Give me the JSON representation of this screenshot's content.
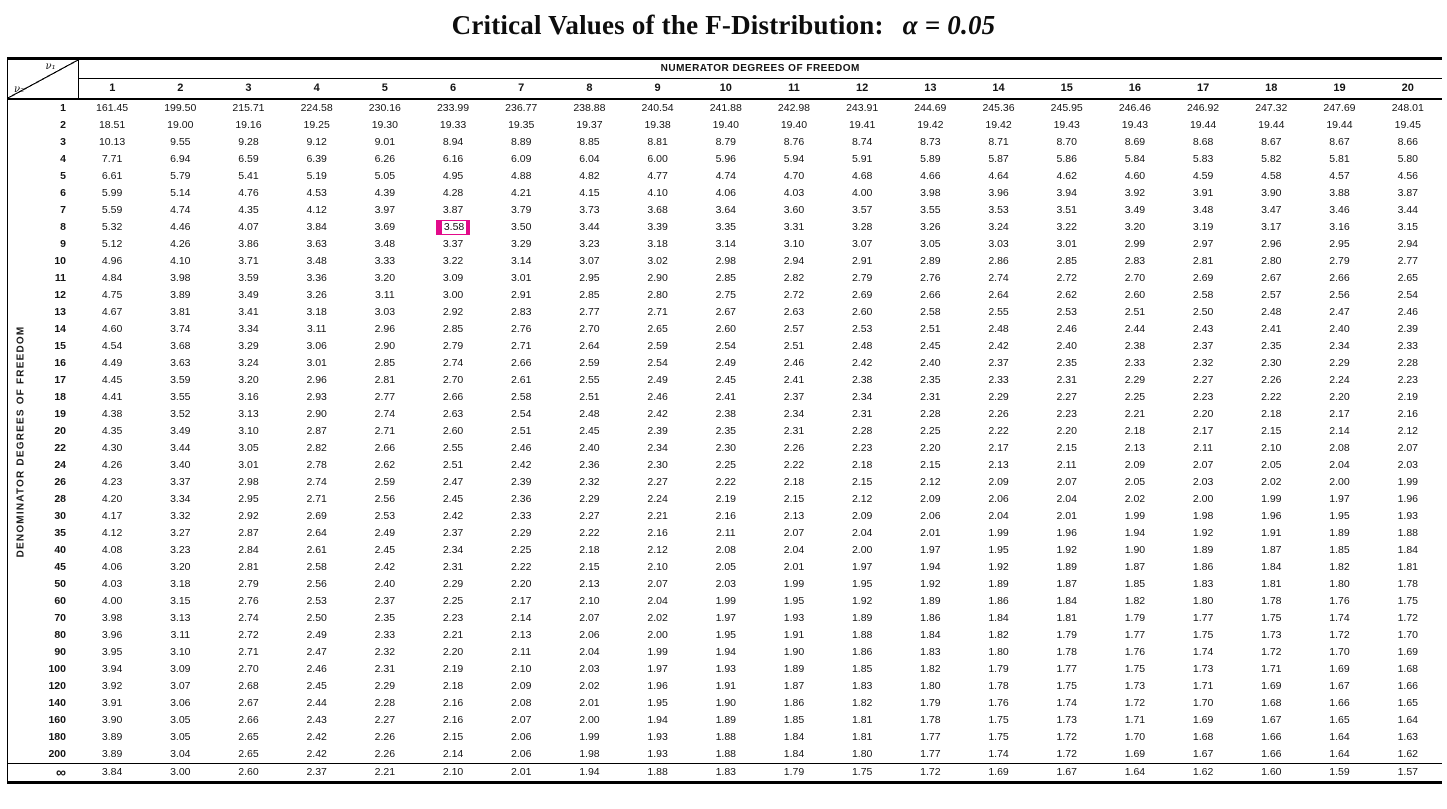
{
  "title": {
    "main": "Critical Values of the F-Distribution:",
    "alpha": "α = 0.05"
  },
  "table": {
    "corner": {
      "v1": "ν₁",
      "v2": "ν₂"
    },
    "numerator_header": "NUMERATOR DEGREES OF FREEDOM",
    "denominator_header": "DENOMINATOR DEGREES OF FREEDOM",
    "columns": [
      "1",
      "2",
      "3",
      "4",
      "5",
      "6",
      "7",
      "8",
      "9",
      "10",
      "11",
      "12",
      "13",
      "14",
      "15",
      "16",
      "17",
      "18",
      "19",
      "20"
    ],
    "highlight": {
      "row_label": "8",
      "column": "6",
      "value": "3.58",
      "color": "#e20a8a"
    },
    "rows": [
      {
        "label": "1",
        "values": [
          "161.45",
          "199.50",
          "215.71",
          "224.58",
          "230.16",
          "233.99",
          "236.77",
          "238.88",
          "240.54",
          "241.88",
          "242.98",
          "243.91",
          "244.69",
          "245.36",
          "245.95",
          "246.46",
          "246.92",
          "247.32",
          "247.69",
          "248.01"
        ]
      },
      {
        "label": "2",
        "values": [
          "18.51",
          "19.00",
          "19.16",
          "19.25",
          "19.30",
          "19.33",
          "19.35",
          "19.37",
          "19.38",
          "19.40",
          "19.40",
          "19.41",
          "19.42",
          "19.42",
          "19.43",
          "19.43",
          "19.44",
          "19.44",
          "19.44",
          "19.45"
        ]
      },
      {
        "label": "3",
        "values": [
          "10.13",
          "9.55",
          "9.28",
          "9.12",
          "9.01",
          "8.94",
          "8.89",
          "8.85",
          "8.81",
          "8.79",
          "8.76",
          "8.74",
          "8.73",
          "8.71",
          "8.70",
          "8.69",
          "8.68",
          "8.67",
          "8.67",
          "8.66"
        ]
      },
      {
        "label": "4",
        "values": [
          "7.71",
          "6.94",
          "6.59",
          "6.39",
          "6.26",
          "6.16",
          "6.09",
          "6.04",
          "6.00",
          "5.96",
          "5.94",
          "5.91",
          "5.89",
          "5.87",
          "5.86",
          "5.84",
          "5.83",
          "5.82",
          "5.81",
          "5.80"
        ]
      },
      {
        "label": "5",
        "values": [
          "6.61",
          "5.79",
          "5.41",
          "5.19",
          "5.05",
          "4.95",
          "4.88",
          "4.82",
          "4.77",
          "4.74",
          "4.70",
          "4.68",
          "4.66",
          "4.64",
          "4.62",
          "4.60",
          "4.59",
          "4.58",
          "4.57",
          "4.56"
        ]
      },
      {
        "label": "6",
        "values": [
          "5.99",
          "5.14",
          "4.76",
          "4.53",
          "4.39",
          "4.28",
          "4.21",
          "4.15",
          "4.10",
          "4.06",
          "4.03",
          "4.00",
          "3.98",
          "3.96",
          "3.94",
          "3.92",
          "3.91",
          "3.90",
          "3.88",
          "3.87"
        ]
      },
      {
        "label": "7",
        "values": [
          "5.59",
          "4.74",
          "4.35",
          "4.12",
          "3.97",
          "3.87",
          "3.79",
          "3.73",
          "3.68",
          "3.64",
          "3.60",
          "3.57",
          "3.55",
          "3.53",
          "3.51",
          "3.49",
          "3.48",
          "3.47",
          "3.46",
          "3.44"
        ]
      },
      {
        "label": "8",
        "values": [
          "5.32",
          "4.46",
          "4.07",
          "3.84",
          "3.69",
          "3.58",
          "3.50",
          "3.44",
          "3.39",
          "3.35",
          "3.31",
          "3.28",
          "3.26",
          "3.24",
          "3.22",
          "3.20",
          "3.19",
          "3.17",
          "3.16",
          "3.15"
        ]
      },
      {
        "label": "9",
        "values": [
          "5.12",
          "4.26",
          "3.86",
          "3.63",
          "3.48",
          "3.37",
          "3.29",
          "3.23",
          "3.18",
          "3.14",
          "3.10",
          "3.07",
          "3.05",
          "3.03",
          "3.01",
          "2.99",
          "2.97",
          "2.96",
          "2.95",
          "2.94"
        ]
      },
      {
        "label": "10",
        "values": [
          "4.96",
          "4.10",
          "3.71",
          "3.48",
          "3.33",
          "3.22",
          "3.14",
          "3.07",
          "3.02",
          "2.98",
          "2.94",
          "2.91",
          "2.89",
          "2.86",
          "2.85",
          "2.83",
          "2.81",
          "2.80",
          "2.79",
          "2.77"
        ]
      },
      {
        "label": "11",
        "values": [
          "4.84",
          "3.98",
          "3.59",
          "3.36",
          "3.20",
          "3.09",
          "3.01",
          "2.95",
          "2.90",
          "2.85",
          "2.82",
          "2.79",
          "2.76",
          "2.74",
          "2.72",
          "2.70",
          "2.69",
          "2.67",
          "2.66",
          "2.65"
        ]
      },
      {
        "label": "12",
        "values": [
          "4.75",
          "3.89",
          "3.49",
          "3.26",
          "3.11",
          "3.00",
          "2.91",
          "2.85",
          "2.80",
          "2.75",
          "2.72",
          "2.69",
          "2.66",
          "2.64",
          "2.62",
          "2.60",
          "2.58",
          "2.57",
          "2.56",
          "2.54"
        ]
      },
      {
        "label": "13",
        "values": [
          "4.67",
          "3.81",
          "3.41",
          "3.18",
          "3.03",
          "2.92",
          "2.83",
          "2.77",
          "2.71",
          "2.67",
          "2.63",
          "2.60",
          "2.58",
          "2.55",
          "2.53",
          "2.51",
          "2.50",
          "2.48",
          "2.47",
          "2.46"
        ]
      },
      {
        "label": "14",
        "values": [
          "4.60",
          "3.74",
          "3.34",
          "3.11",
          "2.96",
          "2.85",
          "2.76",
          "2.70",
          "2.65",
          "2.60",
          "2.57",
          "2.53",
          "2.51",
          "2.48",
          "2.46",
          "2.44",
          "2.43",
          "2.41",
          "2.40",
          "2.39"
        ]
      },
      {
        "label": "15",
        "values": [
          "4.54",
          "3.68",
          "3.29",
          "3.06",
          "2.90",
          "2.79",
          "2.71",
          "2.64",
          "2.59",
          "2.54",
          "2.51",
          "2.48",
          "2.45",
          "2.42",
          "2.40",
          "2.38",
          "2.37",
          "2.35",
          "2.34",
          "2.33"
        ]
      },
      {
        "label": "16",
        "values": [
          "4.49",
          "3.63",
          "3.24",
          "3.01",
          "2.85",
          "2.74",
          "2.66",
          "2.59",
          "2.54",
          "2.49",
          "2.46",
          "2.42",
          "2.40",
          "2.37",
          "2.35",
          "2.33",
          "2.32",
          "2.30",
          "2.29",
          "2.28"
        ]
      },
      {
        "label": "17",
        "values": [
          "4.45",
          "3.59",
          "3.20",
          "2.96",
          "2.81",
          "2.70",
          "2.61",
          "2.55",
          "2.49",
          "2.45",
          "2.41",
          "2.38",
          "2.35",
          "2.33",
          "2.31",
          "2.29",
          "2.27",
          "2.26",
          "2.24",
          "2.23"
        ]
      },
      {
        "label": "18",
        "values": [
          "4.41",
          "3.55",
          "3.16",
          "2.93",
          "2.77",
          "2.66",
          "2.58",
          "2.51",
          "2.46",
          "2.41",
          "2.37",
          "2.34",
          "2.31",
          "2.29",
          "2.27",
          "2.25",
          "2.23",
          "2.22",
          "2.20",
          "2.19"
        ]
      },
      {
        "label": "19",
        "values": [
          "4.38",
          "3.52",
          "3.13",
          "2.90",
          "2.74",
          "2.63",
          "2.54",
          "2.48",
          "2.42",
          "2.38",
          "2.34",
          "2.31",
          "2.28",
          "2.26",
          "2.23",
          "2.21",
          "2.20",
          "2.18",
          "2.17",
          "2.16"
        ]
      },
      {
        "label": "20",
        "values": [
          "4.35",
          "3.49",
          "3.10",
          "2.87",
          "2.71",
          "2.60",
          "2.51",
          "2.45",
          "2.39",
          "2.35",
          "2.31",
          "2.28",
          "2.25",
          "2.22",
          "2.20",
          "2.18",
          "2.17",
          "2.15",
          "2.14",
          "2.12"
        ]
      },
      {
        "label": "22",
        "values": [
          "4.30",
          "3.44",
          "3.05",
          "2.82",
          "2.66",
          "2.55",
          "2.46",
          "2.40",
          "2.34",
          "2.30",
          "2.26",
          "2.23",
          "2.20",
          "2.17",
          "2.15",
          "2.13",
          "2.11",
          "2.10",
          "2.08",
          "2.07"
        ]
      },
      {
        "label": "24",
        "values": [
          "4.26",
          "3.40",
          "3.01",
          "2.78",
          "2.62",
          "2.51",
          "2.42",
          "2.36",
          "2.30",
          "2.25",
          "2.22",
          "2.18",
          "2.15",
          "2.13",
          "2.11",
          "2.09",
          "2.07",
          "2.05",
          "2.04",
          "2.03"
        ]
      },
      {
        "label": "26",
        "values": [
          "4.23",
          "3.37",
          "2.98",
          "2.74",
          "2.59",
          "2.47",
          "2.39",
          "2.32",
          "2.27",
          "2.22",
          "2.18",
          "2.15",
          "2.12",
          "2.09",
          "2.07",
          "2.05",
          "2.03",
          "2.02",
          "2.00",
          "1.99"
        ]
      },
      {
        "label": "28",
        "values": [
          "4.20",
          "3.34",
          "2.95",
          "2.71",
          "2.56",
          "2.45",
          "2.36",
          "2.29",
          "2.24",
          "2.19",
          "2.15",
          "2.12",
          "2.09",
          "2.06",
          "2.04",
          "2.02",
          "2.00",
          "1.99",
          "1.97",
          "1.96"
        ]
      },
      {
        "label": "30",
        "values": [
          "4.17",
          "3.32",
          "2.92",
          "2.69",
          "2.53",
          "2.42",
          "2.33",
          "2.27",
          "2.21",
          "2.16",
          "2.13",
          "2.09",
          "2.06",
          "2.04",
          "2.01",
          "1.99",
          "1.98",
          "1.96",
          "1.95",
          "1.93"
        ]
      },
      {
        "label": "35",
        "values": [
          "4.12",
          "3.27",
          "2.87",
          "2.64",
          "2.49",
          "2.37",
          "2.29",
          "2.22",
          "2.16",
          "2.11",
          "2.07",
          "2.04",
          "2.01",
          "1.99",
          "1.96",
          "1.94",
          "1.92",
          "1.91",
          "1.89",
          "1.88"
        ]
      },
      {
        "label": "40",
        "values": [
          "4.08",
          "3.23",
          "2.84",
          "2.61",
          "2.45",
          "2.34",
          "2.25",
          "2.18",
          "2.12",
          "2.08",
          "2.04",
          "2.00",
          "1.97",
          "1.95",
          "1.92",
          "1.90",
          "1.89",
          "1.87",
          "1.85",
          "1.84"
        ]
      },
      {
        "label": "45",
        "values": [
          "4.06",
          "3.20",
          "2.81",
          "2.58",
          "2.42",
          "2.31",
          "2.22",
          "2.15",
          "2.10",
          "2.05",
          "2.01",
          "1.97",
          "1.94",
          "1.92",
          "1.89",
          "1.87",
          "1.86",
          "1.84",
          "1.82",
          "1.81"
        ]
      },
      {
        "label": "50",
        "values": [
          "4.03",
          "3.18",
          "2.79",
          "2.56",
          "2.40",
          "2.29",
          "2.20",
          "2.13",
          "2.07",
          "2.03",
          "1.99",
          "1.95",
          "1.92",
          "1.89",
          "1.87",
          "1.85",
          "1.83",
          "1.81",
          "1.80",
          "1.78"
        ]
      },
      {
        "label": "60",
        "values": [
          "4.00",
          "3.15",
          "2.76",
          "2.53",
          "2.37",
          "2.25",
          "2.17",
          "2.10",
          "2.04",
          "1.99",
          "1.95",
          "1.92",
          "1.89",
          "1.86",
          "1.84",
          "1.82",
          "1.80",
          "1.78",
          "1.76",
          "1.75"
        ]
      },
      {
        "label": "70",
        "values": [
          "3.98",
          "3.13",
          "2.74",
          "2.50",
          "2.35",
          "2.23",
          "2.14",
          "2.07",
          "2.02",
          "1.97",
          "1.93",
          "1.89",
          "1.86",
          "1.84",
          "1.81",
          "1.79",
          "1.77",
          "1.75",
          "1.74",
          "1.72"
        ]
      },
      {
        "label": "80",
        "values": [
          "3.96",
          "3.11",
          "2.72",
          "2.49",
          "2.33",
          "2.21",
          "2.13",
          "2.06",
          "2.00",
          "1.95",
          "1.91",
          "1.88",
          "1.84",
          "1.82",
          "1.79",
          "1.77",
          "1.75",
          "1.73",
          "1.72",
          "1.70"
        ]
      },
      {
        "label": "90",
        "values": [
          "3.95",
          "3.10",
          "2.71",
          "2.47",
          "2.32",
          "2.20",
          "2.11",
          "2.04",
          "1.99",
          "1.94",
          "1.90",
          "1.86",
          "1.83",
          "1.80",
          "1.78",
          "1.76",
          "1.74",
          "1.72",
          "1.70",
          "1.69"
        ]
      },
      {
        "label": "100",
        "values": [
          "3.94",
          "3.09",
          "2.70",
          "2.46",
          "2.31",
          "2.19",
          "2.10",
          "2.03",
          "1.97",
          "1.93",
          "1.89",
          "1.85",
          "1.82",
          "1.79",
          "1.77",
          "1.75",
          "1.73",
          "1.71",
          "1.69",
          "1.68"
        ]
      },
      {
        "label": "120",
        "values": [
          "3.92",
          "3.07",
          "2.68",
          "2.45",
          "2.29",
          "2.18",
          "2.09",
          "2.02",
          "1.96",
          "1.91",
          "1.87",
          "1.83",
          "1.80",
          "1.78",
          "1.75",
          "1.73",
          "1.71",
          "1.69",
          "1.67",
          "1.66"
        ]
      },
      {
        "label": "140",
        "values": [
          "3.91",
          "3.06",
          "2.67",
          "2.44",
          "2.28",
          "2.16",
          "2.08",
          "2.01",
          "1.95",
          "1.90",
          "1.86",
          "1.82",
          "1.79",
          "1.76",
          "1.74",
          "1.72",
          "1.70",
          "1.68",
          "1.66",
          "1.65"
        ]
      },
      {
        "label": "160",
        "values": [
          "3.90",
          "3.05",
          "2.66",
          "2.43",
          "2.27",
          "2.16",
          "2.07",
          "2.00",
          "1.94",
          "1.89",
          "1.85",
          "1.81",
          "1.78",
          "1.75",
          "1.73",
          "1.71",
          "1.69",
          "1.67",
          "1.65",
          "1.64"
        ]
      },
      {
        "label": "180",
        "values": [
          "3.89",
          "3.05",
          "2.65",
          "2.42",
          "2.26",
          "2.15",
          "2.06",
          "1.99",
          "1.93",
          "1.88",
          "1.84",
          "1.81",
          "1.77",
          "1.75",
          "1.72",
          "1.70",
          "1.68",
          "1.66",
          "1.64",
          "1.63"
        ]
      },
      {
        "label": "200",
        "values": [
          "3.89",
          "3.04",
          "2.65",
          "2.42",
          "2.26",
          "2.14",
          "2.06",
          "1.98",
          "1.93",
          "1.88",
          "1.84",
          "1.80",
          "1.77",
          "1.74",
          "1.72",
          "1.69",
          "1.67",
          "1.66",
          "1.64",
          "1.62"
        ]
      },
      {
        "label": "∞",
        "values": [
          "3.84",
          "3.00",
          "2.60",
          "2.37",
          "2.21",
          "2.10",
          "2.01",
          "1.94",
          "1.88",
          "1.83",
          "1.79",
          "1.75",
          "1.72",
          "1.69",
          "1.67",
          "1.64",
          "1.62",
          "1.60",
          "1.59",
          "1.57"
        ]
      }
    ]
  }
}
